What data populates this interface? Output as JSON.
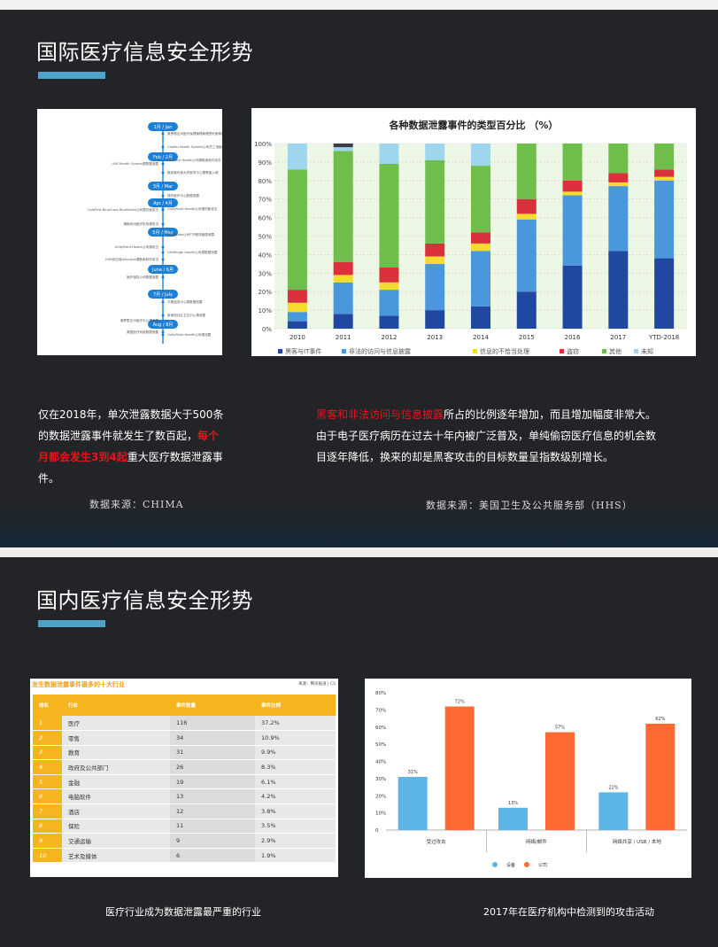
{
  "slide1": {
    "title": "国际医疗信息安全形势",
    "timeline": {
      "months": [
        "1月 / Jan",
        "Feb / 2月",
        "3月 / Mar",
        "Apr / 4月",
        "5月 / May",
        "June / 6月",
        "7月 / July",
        "Aug / 8月"
      ],
      "entries_right": [
        "美罗德达州医疗保健管理局遭受钓鱼邮件攻击",
        "Capital Health System公司员工电脑被盗",
        "Hancock Health公司遭勒索软件攻击",
        "俄亥俄州首大学医学中心遭黑客入侵",
        "纽约医疗中心数据泄露",
        "UnityPoint Health公司遭钓鱼攻击",
        "ModBroke公司FTP服务器遭泄露",
        "LifeBridge Health公司遭数据泄露",
        "卡斯迪亚中心遭数据泄露",
        "新泽西社区卫生中心遭泄露",
        "UnityPoint Health公司遭泄露"
      ],
      "entries_left": [
        "UVA Health System遭数据泄露",
        "CareFirst BlueCross BlueShield公司遭钓鱼攻击",
        "俄勒冈州医疗机构遭攻击",
        "UnityPoint Health公司遭攻击",
        "EHR供应商Allscripts遭勒索软件攻击",
        "医疗保险公司数据泄露",
        "佛罗里达州医疗中心遭泄露",
        "美国医疗系统数据泄露"
      ]
    },
    "chart_data": {
      "type": "bar",
      "title": "各种数据泄露事件的类型百分比 （%）",
      "categories": [
        "2010",
        "2011",
        "2012",
        "2013",
        "2014",
        "2015",
        "2016",
        "2017",
        "YTD-2018"
      ],
      "ylim": [
        0,
        100
      ],
      "yticks": [
        "0%",
        "10%",
        "20%",
        "30%",
        "40%",
        "50%",
        "60%",
        "70%",
        "80%",
        "90%",
        "100%"
      ],
      "series": [
        {
          "name": "黑客与IT事件",
          "color": "#2148a0",
          "values": [
            4,
            8,
            7,
            10,
            12,
            20,
            34,
            42,
            38
          ]
        },
        {
          "name": "非法的访问与信息披露",
          "color": "#4a97dc",
          "values": [
            5,
            17,
            14,
            25,
            30,
            39,
            38,
            35,
            42
          ]
        },
        {
          "name": "信息的不恰当处理",
          "color": "#f5dc2c",
          "values": [
            5,
            4,
            4,
            4,
            4,
            3,
            2,
            2,
            2
          ]
        },
        {
          "name": "盗窃",
          "color": "#d9303b",
          "values": [
            7,
            7,
            8,
            7,
            6,
            8,
            6,
            5,
            4
          ]
        },
        {
          "name": "其他",
          "color": "#6fbd4b",
          "values": [
            65,
            60,
            56,
            45,
            36,
            30,
            20,
            16,
            14
          ]
        },
        {
          "name": "未知",
          "color": "#9fd6ee",
          "values": [
            14,
            2,
            11,
            9,
            12,
            0,
            0,
            0,
            0
          ]
        },
        {
          "name": "",
          "color": "#3a3d42",
          "values": [
            0,
            2,
            0,
            0,
            0,
            0,
            0,
            0,
            0
          ]
        }
      ],
      "legend": [
        "黑客与IT事件",
        "非法的访问与信息披露",
        "信息的不恰当处理",
        "盗窃",
        "其他",
        "未知"
      ]
    },
    "left_caption": {
      "p1": "仅在2018年，单次泄露数据大于500条的数据泄露事件就发生了数百起，",
      "highlight": "每个月都会发生3到4起",
      "p2": "重大医疗数据泄露事件。"
    },
    "right_caption": {
      "highlight": "黑客和非法访问与信息披露",
      "rest": "所占的比例逐年增加，而且增加幅度非常大。由于电子医疗病历在过去十年内被广泛普及，单纯偷窃医疗信息的机会数目逐年降低，换来的却是黑客攻击的目标数量呈指数级别增长。"
    },
    "left_source": "数据来源：CHIMA",
    "right_source": "数据来源：美国卫生及公共服务部（HHS）"
  },
  "slide2": {
    "title": "国内医疗信息安全形势",
    "table": {
      "title": "发生数据泄露事件最多的十大行业",
      "source": "来源：腾讯报道 | CS",
      "headers": [
        "排名",
        "行业",
        "事件数量",
        "事件比例"
      ],
      "rows": [
        [
          "1",
          "医疗",
          "116",
          "37.2%"
        ],
        [
          "2",
          "零售",
          "34",
          "10.9%"
        ],
        [
          "3",
          "教育",
          "31",
          "9.9%"
        ],
        [
          "4",
          "政府及公共部门",
          "26",
          "8.3%"
        ],
        [
          "5",
          "金融",
          "19",
          "6.1%"
        ],
        [
          "6",
          "电脑软件",
          "13",
          "4.2%"
        ],
        [
          "7",
          "酒店",
          "12",
          "3.8%"
        ],
        [
          "8",
          "保险",
          "11",
          "3.5%"
        ],
        [
          "9",
          "交通运输",
          "9",
          "2.9%"
        ],
        [
          "10",
          "艺术及媒体",
          "6",
          "1.9%"
        ]
      ]
    },
    "chart_data": {
      "type": "bar",
      "categories": [
        "受过攻击",
        "网络/邮件",
        "网络共享 / USB / 本地"
      ],
      "ylim": [
        0,
        80
      ],
      "yticks": [
        "0",
        "10%",
        "20%",
        "30%",
        "40%",
        "50%",
        "60%",
        "70%",
        "80%"
      ],
      "series": [
        {
          "name": "设备",
          "color": "#5db4e6",
          "values": [
            31,
            13,
            22
          ],
          "labels": [
            "31%",
            "13%",
            "22%"
          ]
        },
        {
          "name": "公司",
          "color": "#ff6a33",
          "values": [
            72,
            57,
            62
          ],
          "labels": [
            "72%",
            "57%",
            "62%"
          ]
        }
      ]
    },
    "left_caption": "医疗行业成为数据泄露最严重的行业",
    "right_caption": "2017年在医疗机构中检测到的攻击活动"
  }
}
